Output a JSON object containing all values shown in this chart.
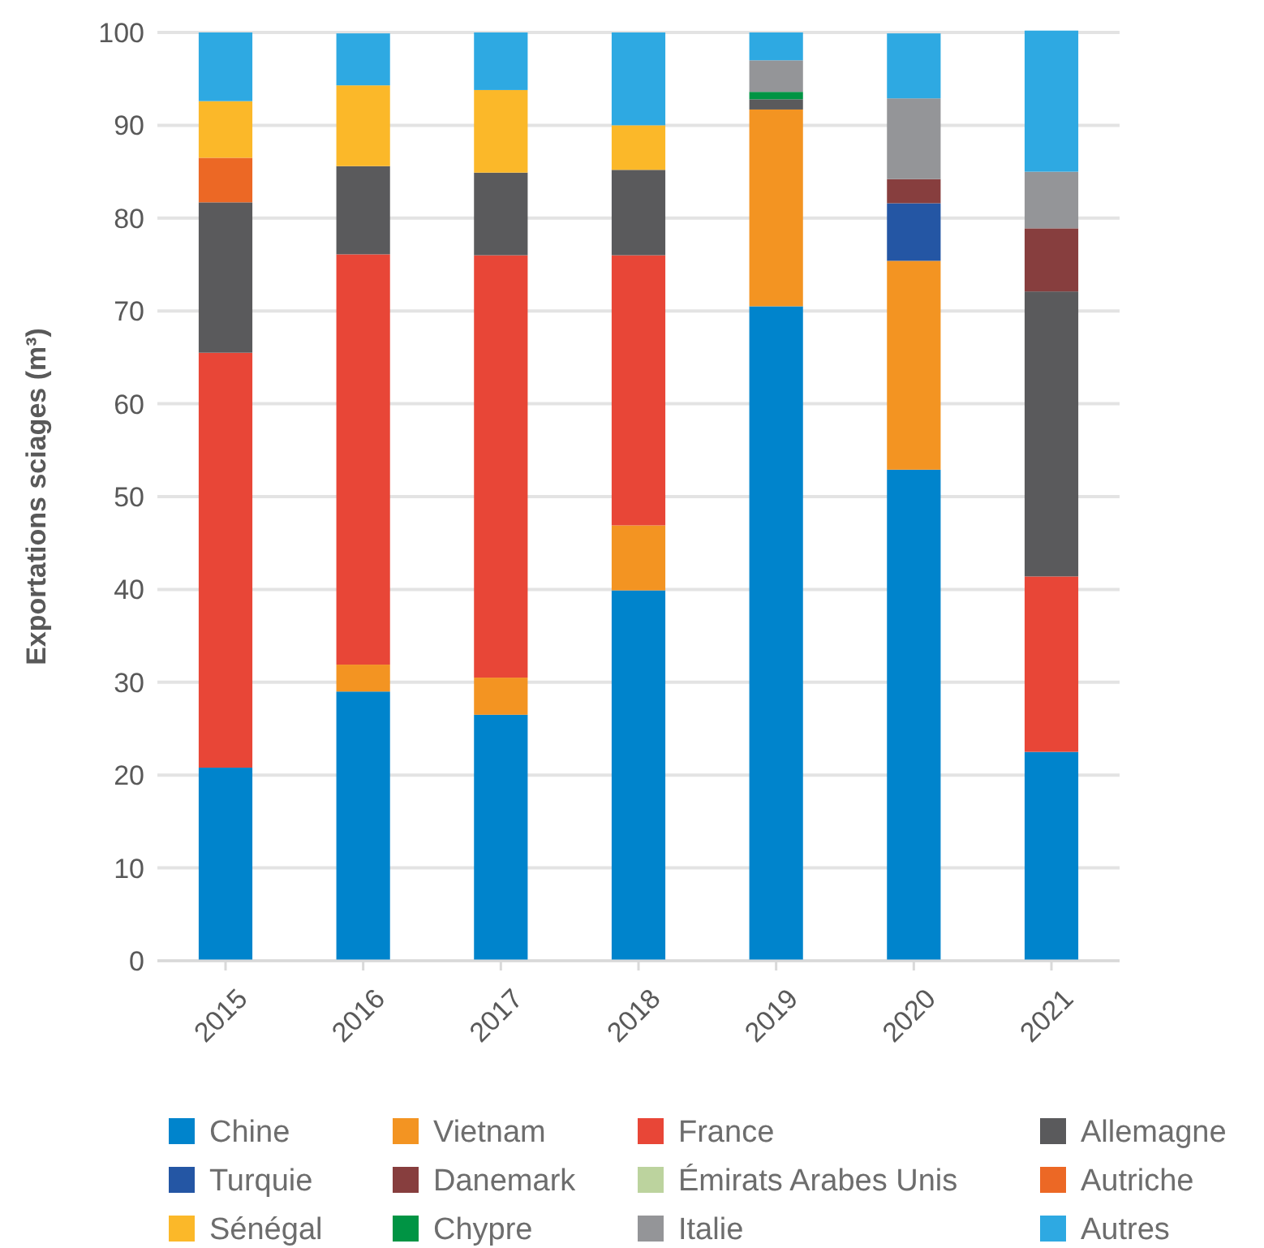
{
  "chart_data": {
    "type": "bar",
    "stacked": true,
    "ylabel": "Exportations sciages (m³)",
    "categories": [
      "2015",
      "2016",
      "2017",
      "2018",
      "2019",
      "2020",
      "2021"
    ],
    "series": [
      {
        "name": "Chine",
        "color": "#0084cc",
        "values": [
          20.8,
          29.0,
          26.5,
          39.9,
          70.5,
          52.9,
          22.5
        ]
      },
      {
        "name": "Vietnam",
        "color": "#f39422",
        "values": [
          null,
          2.9,
          4.0,
          7.0,
          21.2,
          22.5,
          null
        ]
      },
      {
        "name": "France",
        "color": "#e84637",
        "values": [
          44.7,
          44.2,
          45.5,
          29.1,
          null,
          null,
          18.9
        ]
      },
      {
        "name": "Allemagne",
        "color": "#5a5a5c",
        "values": [
          16.2,
          9.5,
          8.9,
          9.2,
          1.1,
          null,
          30.7
        ]
      },
      {
        "name": "Turquie",
        "color": "#2456a4",
        "values": [
          null,
          null,
          null,
          null,
          null,
          6.2,
          null
        ]
      },
      {
        "name": "Danemark",
        "color": "#873e3e",
        "values": [
          null,
          null,
          null,
          null,
          null,
          2.6,
          6.8
        ]
      },
      {
        "name": "Émirats Arabes Unis",
        "color": "#bcd39e",
        "values": [
          null,
          null,
          null,
          null,
          null,
          null,
          null
        ]
      },
      {
        "name": "Autriche",
        "color": "#ec6825",
        "values": [
          4.8,
          null,
          null,
          null,
          null,
          null,
          null
        ]
      },
      {
        "name": "Sénégal",
        "color": "#fbb829",
        "values": [
          6.1,
          8.7,
          8.9,
          4.8,
          null,
          null,
          null
        ]
      },
      {
        "name": "Chypre",
        "color": "#009444",
        "values": [
          null,
          null,
          null,
          null,
          0.8,
          null,
          null
        ]
      },
      {
        "name": "Italie",
        "color": "#949598",
        "values": [
          null,
          null,
          null,
          null,
          3.4,
          8.7,
          6.1
        ]
      },
      {
        "name": "Autres",
        "color": "#2ea9e2",
        "values": [
          7.4,
          5.6,
          6.2,
          10.0,
          3.0,
          7.0,
          15.2
        ]
      }
    ],
    "ylim": [
      0,
      100
    ],
    "yticks": [
      0,
      10,
      20,
      30,
      40,
      50,
      60,
      70,
      80,
      90,
      100
    ],
    "grid": "y",
    "legend": "bottom"
  }
}
